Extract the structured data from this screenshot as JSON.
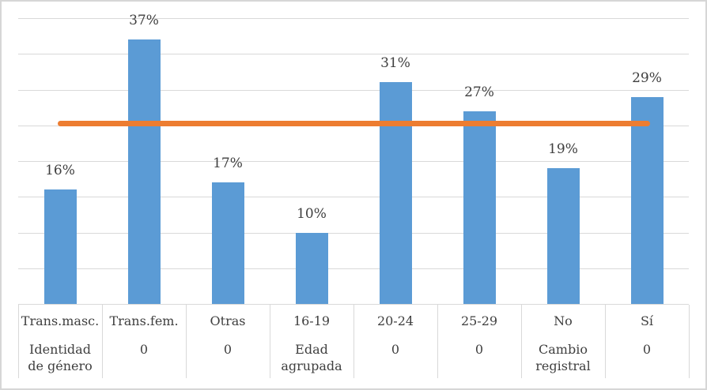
{
  "chart_data": {
    "type": "bar",
    "title": "",
    "xlabel": "",
    "ylabel": "",
    "categories": [
      "Trans.masc.",
      "Trans.fem.",
      "Otras",
      "16-19",
      "20-24",
      "25-29",
      "No",
      "Sí"
    ],
    "group_labels": [
      "Identidad de género",
      "0",
      "0",
      "Edad agrupada",
      "0",
      "0",
      "Cambio registral",
      "0"
    ],
    "values": [
      16,
      37,
      17,
      10,
      31,
      27,
      19,
      29
    ],
    "data_labels": [
      "16%",
      "37%",
      "17%",
      "10%",
      "31%",
      "27%",
      "19%",
      "29%"
    ],
    "ylim": [
      0,
      40
    ],
    "grid_interval": 5,
    "grid": true,
    "y_axis_tick_labels": "none",
    "legend": "none",
    "reference_line": {
      "type": "line",
      "value": 25,
      "extent": "first to last category center"
    }
  },
  "colors": {
    "bar": "#5B9BD5",
    "reference_line": "#ED7D31",
    "gridline": "#D9D9D9",
    "axis_table_border": "#D9D9D9",
    "outer_border": "#D6D6D6",
    "text": "#3F3F3F",
    "background": "#FFFFFF"
  }
}
